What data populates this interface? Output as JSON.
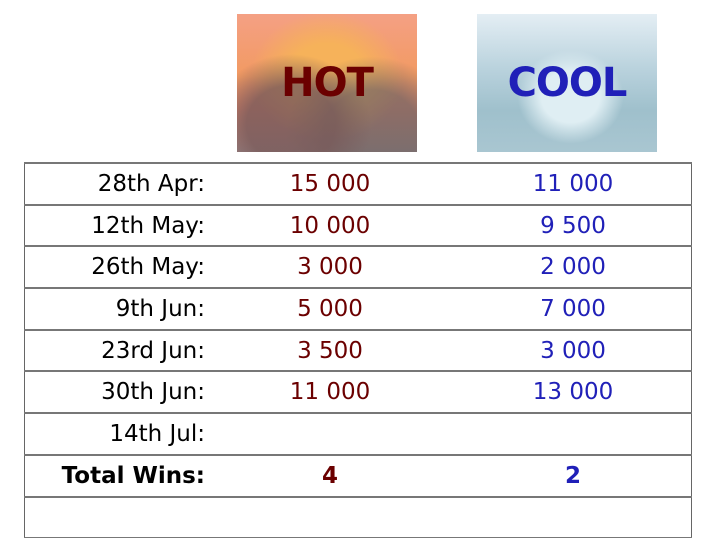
{
  "headers": {
    "hot": "HOT",
    "cool": "COOL"
  },
  "colors": {
    "hot": "#6b0000",
    "cool": "#2020b8"
  },
  "rows": [
    {
      "date": "28th Apr:",
      "hot": "15 000",
      "cool": "11 000"
    },
    {
      "date": "12th May:",
      "hot": "10 000",
      "cool": "9 500"
    },
    {
      "date": "26th May:",
      "hot": "3 000",
      "cool": "2 000"
    },
    {
      "date": "9th Jun:",
      "hot": "5 000",
      "cool": "7 000"
    },
    {
      "date": "23rd Jun:",
      "hot": "3 500",
      "cool": "3 000"
    },
    {
      "date": "30th Jun:",
      "hot": "11 000",
      "cool": "13 000"
    },
    {
      "date": "14th Jul:",
      "hot": "",
      "cool": ""
    }
  ],
  "total": {
    "label": "Total Wins:",
    "hot": "4",
    "cool": "2"
  }
}
